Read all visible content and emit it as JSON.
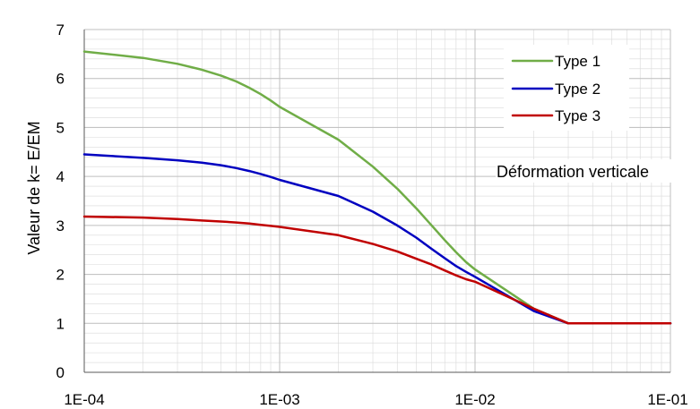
{
  "chart_data": {
    "type": "line",
    "title": "",
    "xlabel": "Déformation verticale",
    "ylabel": "Valeur de k= E/EM",
    "x_scale": "log",
    "xlim": [
      0.0001,
      0.1
    ],
    "ylim": [
      0,
      7
    ],
    "x_ticks": [
      "1E-04",
      "1E-03",
      "1E-02",
      "1E-01"
    ],
    "y_ticks": [
      "0",
      "1",
      "2",
      "3",
      "4",
      "5",
      "6",
      "7"
    ],
    "grid": true,
    "legend_position": "top-right",
    "x": [
      0.0001,
      0.0002,
      0.0003,
      0.0004,
      0.0005,
      0.0006,
      0.0007,
      0.0008,
      0.0009,
      0.001,
      0.002,
      0.003,
      0.004,
      0.005,
      0.006,
      0.007,
      0.008,
      0.009,
      0.01,
      0.02,
      0.03,
      0.04,
      0.05,
      0.06,
      0.07,
      0.08,
      0.09,
      0.1
    ],
    "series": [
      {
        "name": "Type 1",
        "color": "#70ad47",
        "values": [
          6.55,
          6.42,
          6.3,
          6.18,
          6.06,
          5.94,
          5.81,
          5.68,
          5.55,
          5.42,
          4.75,
          4.2,
          3.75,
          3.35,
          3.0,
          2.7,
          2.45,
          2.25,
          2.1,
          1.3,
          1.0,
          1.0,
          1.0,
          1.0,
          1.0,
          1.0,
          1.0,
          1.0
        ]
      },
      {
        "name": "Type 2",
        "color": "#0000c0",
        "values": [
          4.45,
          4.38,
          4.33,
          4.28,
          4.23,
          4.17,
          4.11,
          4.05,
          3.99,
          3.93,
          3.6,
          3.28,
          3.0,
          2.75,
          2.52,
          2.33,
          2.17,
          2.05,
          1.95,
          1.25,
          1.0,
          1.0,
          1.0,
          1.0,
          1.0,
          1.0,
          1.0,
          1.0
        ]
      },
      {
        "name": "Type 3",
        "color": "#c00000",
        "values": [
          3.18,
          3.16,
          3.13,
          3.1,
          3.08,
          3.06,
          3.04,
          3.01,
          2.99,
          2.97,
          2.8,
          2.62,
          2.47,
          2.32,
          2.2,
          2.08,
          1.98,
          1.9,
          1.85,
          1.3,
          1.0,
          1.0,
          1.0,
          1.0,
          1.0,
          1.0,
          1.0,
          1.0
        ]
      }
    ]
  }
}
